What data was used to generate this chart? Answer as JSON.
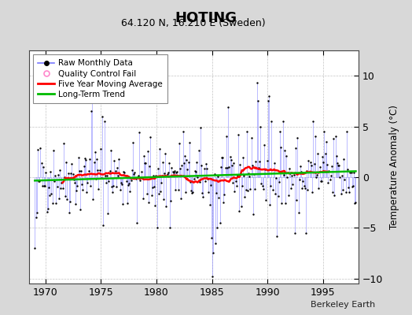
{
  "title": "HOTING",
  "subtitle": "64.120 N, 16.210 E (Sweden)",
  "ylabel": "Temperature Anomaly (°C)",
  "credit": "Berkeley Earth",
  "xlim": [
    1968.5,
    1998.2
  ],
  "ylim": [
    -10.5,
    12.5
  ],
  "yticks": [
    -10,
    -5,
    0,
    5,
    10
  ],
  "xticks": [
    1970,
    1975,
    1980,
    1985,
    1990,
    1995
  ],
  "bg_color": "#d8d8d8",
  "plot_bg_color": "#ffffff",
  "grid_color": "#aaaaaa",
  "raw_line_color": "#7777ff",
  "raw_dot_color": "#000000",
  "moving_avg_color": "#ff0000",
  "trend_color": "#00bb00",
  "qc_fail_color": "#ff88cc",
  "seed": 42
}
